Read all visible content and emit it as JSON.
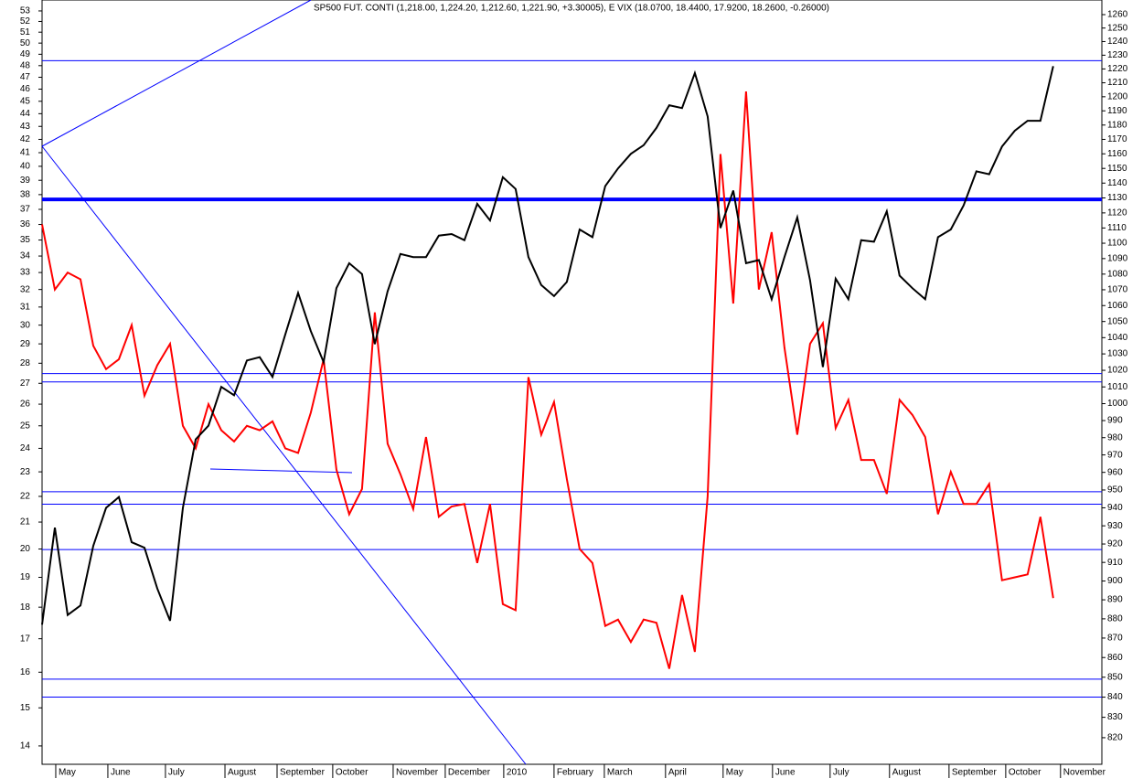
{
  "chart_data": {
    "type": "line",
    "title": "SP500 FUT. CONTI (1,218.00, 1,224.20, 1,212.60, 1,221.90, +3.30005), E VIX (18.0700, 18.4400, 17.9200, 18.2600, -0.26000)",
    "log_scale": true,
    "xlim": [
      0,
      82.8
    ],
    "xticks": [
      {
        "value": 1.07,
        "label": "May"
      },
      {
        "value": 5.14,
        "label": "June"
      },
      {
        "value": 9.64,
        "label": "July"
      },
      {
        "value": 14.29,
        "label": "August"
      },
      {
        "value": 18.36,
        "label": "September"
      },
      {
        "value": 22.71,
        "label": "October"
      },
      {
        "value": 27.43,
        "label": "November"
      },
      {
        "value": 31.5,
        "label": "December"
      },
      {
        "value": 36.07,
        "label": "2010"
      },
      {
        "value": 40,
        "label": "February"
      },
      {
        "value": 43.93,
        "label": "March"
      },
      {
        "value": 48.71,
        "label": "April"
      },
      {
        "value": 53.21,
        "label": "May"
      },
      {
        "value": 57.07,
        "label": "June"
      },
      {
        "value": 61.57,
        "label": "July"
      },
      {
        "value": 66.21,
        "label": "August"
      },
      {
        "value": 70.86,
        "label": "September"
      },
      {
        "value": 75.29,
        "label": "October"
      },
      {
        "value": 79.57,
        "label": "November"
      }
    ],
    "ylim": [
      13.21,
      54.06
    ],
    "yticks": [
      14,
      15,
      16,
      17,
      18,
      19,
      20,
      21,
      22,
      23,
      24,
      25,
      26,
      27,
      28,
      29,
      30,
      31,
      32,
      33,
      34,
      35,
      36,
      37,
      38,
      39,
      40,
      41,
      42,
      43,
      44,
      45,
      46,
      47,
      48,
      49,
      50,
      51,
      52,
      53
    ],
    "y2lim": [
      800.6,
      1271
    ],
    "y2ticks": [
      820,
      830,
      840,
      850,
      860,
      870,
      880,
      890,
      900,
      910,
      920,
      930,
      940,
      950,
      960,
      970,
      980,
      990,
      1000,
      1010,
      1020,
      1030,
      1040,
      1050,
      1060,
      1070,
      1080,
      1090,
      1100,
      1110,
      1120,
      1130,
      1140,
      1150,
      1160,
      1170,
      1180,
      1190,
      1200,
      1210,
      1220,
      1230,
      1240,
      1250,
      1260
    ],
    "hlines": [
      1226,
      1018,
      1013,
      949,
      942,
      917,
      849,
      840
    ],
    "thick_hline": 1129,
    "series": [
      {
        "name": "E VIX",
        "color": "#ff0000",
        "axis": "y",
        "values": [
          36,
          32,
          33,
          32.6,
          28.9,
          27.7,
          28.2,
          30,
          26.4,
          27.9,
          29,
          25,
          24,
          26,
          24.8,
          24.3,
          25,
          24.8,
          25.2,
          24,
          23.8,
          25.6,
          28.2,
          23.1,
          21.3,
          22.3,
          30.7,
          24.2,
          22.9,
          21.5,
          24.5,
          21.2,
          21.6,
          21.7,
          19.5,
          21.7,
          18.1,
          17.9,
          27.3,
          24.6,
          26.1,
          22.7,
          20,
          19.5,
          17.4,
          17.6,
          16.9,
          17.6,
          17.5,
          16.1,
          18.4,
          16.6,
          22,
          40.9,
          31.2,
          45.8,
          32,
          35.5,
          28.8,
          24.6,
          29,
          30.1,
          24.9,
          26.2,
          23.5,
          23.5,
          22.1,
          26.2,
          25.5,
          24.5,
          21.3,
          23,
          21.7,
          21.7,
          22.5,
          18.9,
          19,
          19.1,
          21.2,
          18.3
        ]
      },
      {
        "name": "SP500 FUT. CONTI",
        "color": "#000000",
        "axis": "y2",
        "values": [
          877,
          929,
          882,
          887,
          919,
          940,
          946,
          921,
          918,
          896,
          879,
          940,
          979,
          987,
          1010,
          1005,
          1026,
          1028,
          1016,
          1042,
          1068,
          1044,
          1025,
          1071,
          1087,
          1080,
          1036,
          1069,
          1093,
          1091,
          1091,
          1105,
          1106,
          1102,
          1126,
          1115,
          1144,
          1136,
          1091,
          1073,
          1066,
          1075,
          1109,
          1104,
          1138,
          1150,
          1160,
          1166,
          1178,
          1194,
          1192,
          1217,
          1186,
          1110,
          1135,
          1087,
          1089,
          1064,
          1091,
          1117,
          1076,
          1022,
          1077,
          1064,
          1102,
          1101,
          1121,
          1079,
          1071,
          1064,
          1104,
          1109,
          1125,
          1148,
          1146,
          1165,
          1176,
          1183,
          1183,
          1222
        ]
      }
    ]
  }
}
